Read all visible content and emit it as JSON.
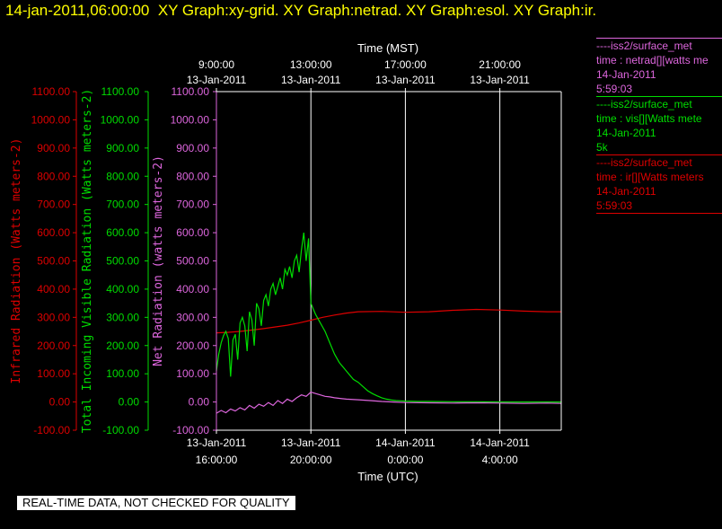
{
  "header": {
    "timestamp": "14-jan-2011,06:00:00",
    "graphs": "XY Graph:xy-grid.  XY Graph:netrad.  XY Graph:esol.  XY Graph:ir."
  },
  "legend": [
    {
      "source": "----iss2/surface_met",
      "desc": "time : netrad[][watts me",
      "date": "14-Jan-2011",
      "time": "5:59:03",
      "color": "#dd66dd"
    },
    {
      "source": "----iss2/surface_met",
      "desc": "time : vis[][Watts mete",
      "date": "14-Jan-2011",
      "time": "5k",
      "color": "#00dd00"
    },
    {
      "source": "----iss2/surface_met",
      "desc": "time : ir[][Watts meters",
      "date": "14-Jan-2011",
      "time": "5:59:03",
      "color": "#dd0000"
    }
  ],
  "quality_notice": "REAL-TIME DATA, NOT CHECKED FOR QUALITY",
  "colors": {
    "ir": "#dd0000",
    "vis": "#00dd00",
    "net": "#dd66dd",
    "grid": "#ffffff",
    "axis": "#ffffff"
  },
  "chart_data": {
    "type": "line",
    "top_axis_title": "Time (MST)",
    "bottom_axis_title": "Time (UTC)",
    "top_ticks": [
      {
        "time": "9:00:00",
        "date": "13-Jan-2011",
        "x": 16
      },
      {
        "time": "13:00:00",
        "date": "13-Jan-2011",
        "x": 20
      },
      {
        "time": "17:00:00",
        "date": "13-Jan-2011",
        "x": 24
      },
      {
        "time": "21:00:00",
        "date": "13-Jan-2011",
        "x": 28
      }
    ],
    "bottom_ticks": [
      {
        "date": "13-Jan-2011",
        "time": "16:00:00",
        "x": 16
      },
      {
        "date": "13-Jan-2011",
        "time": "20:00:00",
        "x": 20
      },
      {
        "date": "14-Jan-2011",
        "time": "0:00:00",
        "x": 24
      },
      {
        "date": "14-Jan-2011",
        "time": "4:00:00",
        "x": 28
      }
    ],
    "xlim": [
      16,
      30.6
    ],
    "ylim": [
      -100,
      1100
    ],
    "y_ticks": [
      -100,
      0,
      100,
      200,
      300,
      400,
      500,
      600,
      700,
      800,
      900,
      1000,
      1100
    ],
    "y_tick_labels": [
      "-100.00",
      "0.00",
      "100.00",
      "200.00",
      "300.00",
      "400.00",
      "500.00",
      "600.00",
      "700.00",
      "800.00",
      "900.00",
      "1000.00",
      "1100.00"
    ],
    "y_axes": [
      {
        "label": "Infrared Radiation (Watts meters-2)",
        "color": "#dd0000"
      },
      {
        "label": "Total Incoming Visible Radiation (Watts meters-2)",
        "color": "#00dd00"
      },
      {
        "label": "Net Radiation (watts meters-2)",
        "color": "#dd66dd"
      }
    ],
    "series": [
      {
        "key": "ir",
        "color": "#dd0000",
        "x": [
          16.0,
          16.5,
          17.0,
          17.5,
          18.0,
          18.5,
          19.0,
          19.5,
          20.0,
          20.5,
          21.0,
          21.5,
          22.0,
          23.0,
          24.0,
          25.0,
          26.0,
          27.0,
          28.0,
          29.0,
          30.0,
          30.6
        ],
        "y": [
          245,
          247,
          250,
          255,
          260,
          266,
          272,
          280,
          290,
          300,
          308,
          315,
          320,
          321,
          318,
          320,
          325,
          328,
          326,
          322,
          320,
          320
        ]
      },
      {
        "key": "vis",
        "color": "#00dd00",
        "x": [
          16.0,
          16.1,
          16.2,
          16.3,
          16.4,
          16.5,
          16.6,
          16.7,
          16.8,
          16.9,
          17.0,
          17.1,
          17.2,
          17.3,
          17.4,
          17.5,
          17.6,
          17.7,
          17.8,
          17.9,
          18.0,
          18.1,
          18.2,
          18.3,
          18.4,
          18.5,
          18.6,
          18.7,
          18.8,
          18.9,
          19.0,
          19.1,
          19.2,
          19.3,
          19.4,
          19.5,
          19.6,
          19.7,
          19.8,
          19.9,
          20.0,
          20.1,
          20.2,
          20.4,
          20.6,
          20.8,
          21.0,
          21.2,
          21.4,
          21.6,
          21.8,
          22.0,
          22.2,
          22.4,
          22.6,
          22.8,
          23.0,
          23.2,
          23.4,
          23.6,
          23.8,
          24.0,
          24.5,
          25.0,
          26.0,
          27.0,
          28.0,
          29.0,
          30.0,
          30.6
        ],
        "y": [
          110,
          170,
          210,
          235,
          250,
          225,
          90,
          220,
          240,
          150,
          280,
          300,
          270,
          180,
          320,
          290,
          200,
          350,
          330,
          270,
          360,
          380,
          340,
          400,
          420,
          380,
          410,
          440,
          400,
          470,
          450,
          480,
          440,
          500,
          520,
          460,
          540,
          600,
          500,
          580,
          350,
          330,
          310,
          280,
          250,
          210,
          170,
          140,
          120,
          100,
          80,
          70,
          55,
          40,
          30,
          22,
          15,
          10,
          7,
          5,
          4,
          3,
          2,
          2,
          1,
          1,
          0,
          0,
          0,
          0
        ]
      },
      {
        "key": "net",
        "color": "#dd66dd",
        "x": [
          16.0,
          16.2,
          16.4,
          16.6,
          16.8,
          17.0,
          17.2,
          17.4,
          17.6,
          17.8,
          18.0,
          18.2,
          18.4,
          18.6,
          18.8,
          19.0,
          19.2,
          19.4,
          19.6,
          19.8,
          20.0,
          20.2,
          20.4,
          20.6,
          20.8,
          21.0,
          21.5,
          22.0,
          22.5,
          23.0,
          23.5,
          24.0,
          25.0,
          26.0,
          27.0,
          28.0,
          29.0,
          30.0,
          30.6
        ],
        "y": [
          -40,
          -30,
          -38,
          -25,
          -32,
          -20,
          -28,
          -12,
          -22,
          -8,
          -15,
          -2,
          -12,
          5,
          -5,
          10,
          2,
          15,
          25,
          20,
          35,
          30,
          25,
          20,
          18,
          15,
          10,
          8,
          5,
          2,
          0,
          -2,
          -3,
          -4,
          -3,
          -4,
          -5,
          -4,
          -5
        ]
      }
    ]
  }
}
